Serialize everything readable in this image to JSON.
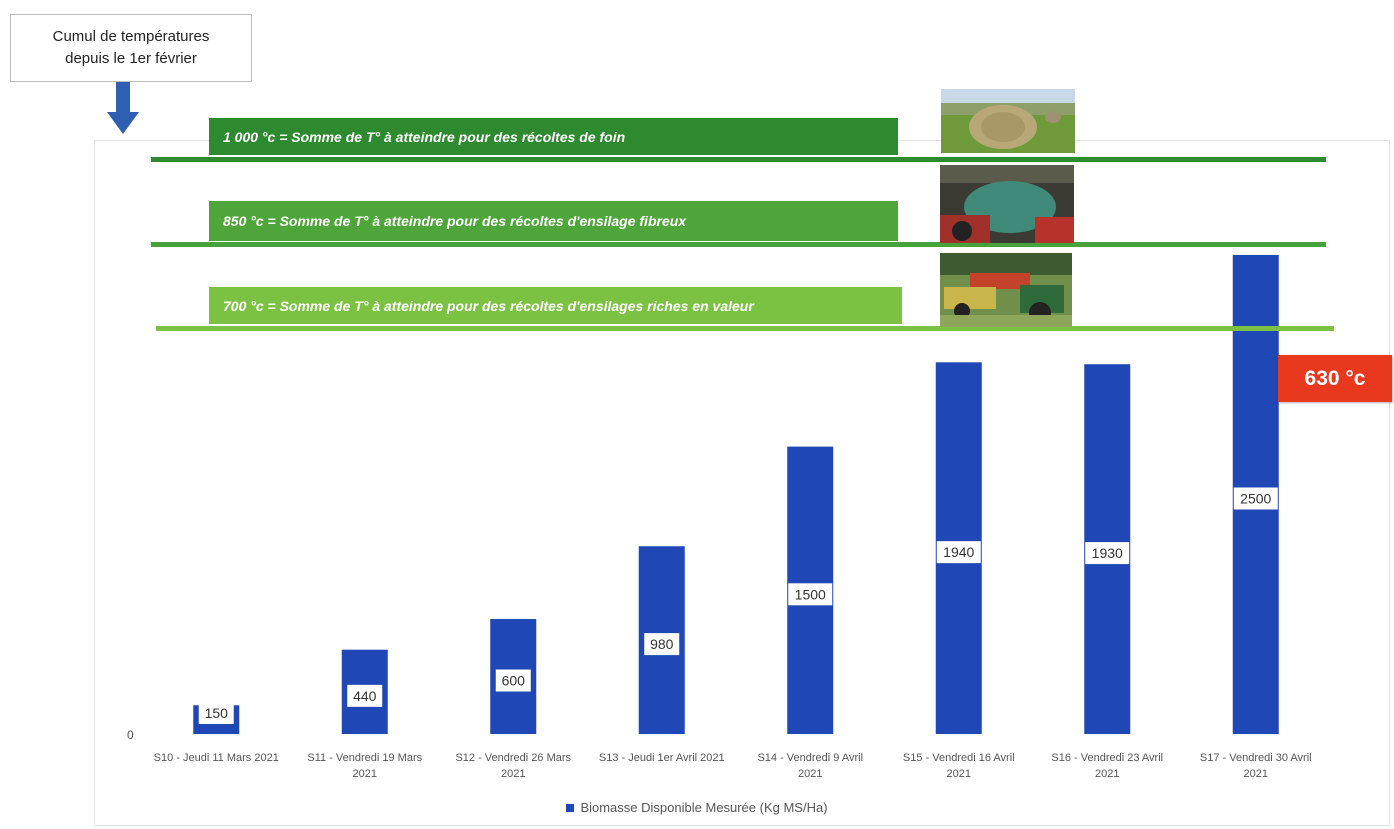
{
  "callout": {
    "line1": "Cumul de températures",
    "line2": "depuis le 1er février"
  },
  "thresholds": [
    {
      "temp": "1 000 °c",
      "text": "1 000 °c = Somme de T° à atteindre pour des récoltes de foin",
      "banner_color": "#2e8a2e",
      "line_color": "#2e8a2e",
      "photo": "hay-bale-field"
    },
    {
      "temp": "850 °c",
      "text": "850 °c = Somme de T° à atteindre pour des récoltes d'ensilage fibreux",
      "banner_color": "#4ea63a",
      "line_color": "#46a23a",
      "photo": "silage-wrapper-machine"
    },
    {
      "temp": "700 °c",
      "text": "700 °c = Somme de T° à atteindre pour des récoltes d'ensilages riches en valeur",
      "banner_color": "#7cc242",
      "line_color": "#7cc242",
      "photo": "forage-harvester-tractor"
    }
  ],
  "current_temp": {
    "label": "630 °c",
    "color": "#e8391f"
  },
  "chart_data": {
    "type": "bar",
    "categories": [
      "S10 - Jeudi 11 Mars 2021",
      "S11 - Vendredi 19 Mars 2021",
      "S12 - Vendredi 26 Mars 2021",
      "S13 - Jeudi 1er Avril 2021",
      "S14 - Vendredi 9 Avril 2021",
      "S15 - Vendredi 16 Avril 2021",
      "S16 - Vendredi 23 Avril 2021",
      "S17 - Vendredi 30 Avril 2021"
    ],
    "category_lines": [
      [
        "S10 - Jeudi 11 Mars 2021"
      ],
      [
        "S11 - Vendredi 19 Mars",
        "2021"
      ],
      [
        "S12 - Vendredi 26 Mars",
        "2021"
      ],
      [
        "S13 - Jeudi 1er Avril 2021"
      ],
      [
        "S14 - Vendredi 9 Avril",
        "2021"
      ],
      [
        "S15 - Vendredi 16 Avril",
        "2021"
      ],
      [
        "S16 - Vendredi 23 Avril",
        "2021"
      ],
      [
        "S17 - Vendredi 30 Avril",
        "2021"
      ]
    ],
    "series": [
      {
        "name": "Biomasse Disponible Mesurée (Kg MS/Ha)",
        "values": [
          150,
          440,
          600,
          980,
          1500,
          1940,
          1930,
          2500
        ],
        "color": "#1f47b5"
      }
    ],
    "y_ticks": [
      "0"
    ],
    "ylim": [
      0,
      2500
    ],
    "legend": "bottom",
    "grid": false
  }
}
